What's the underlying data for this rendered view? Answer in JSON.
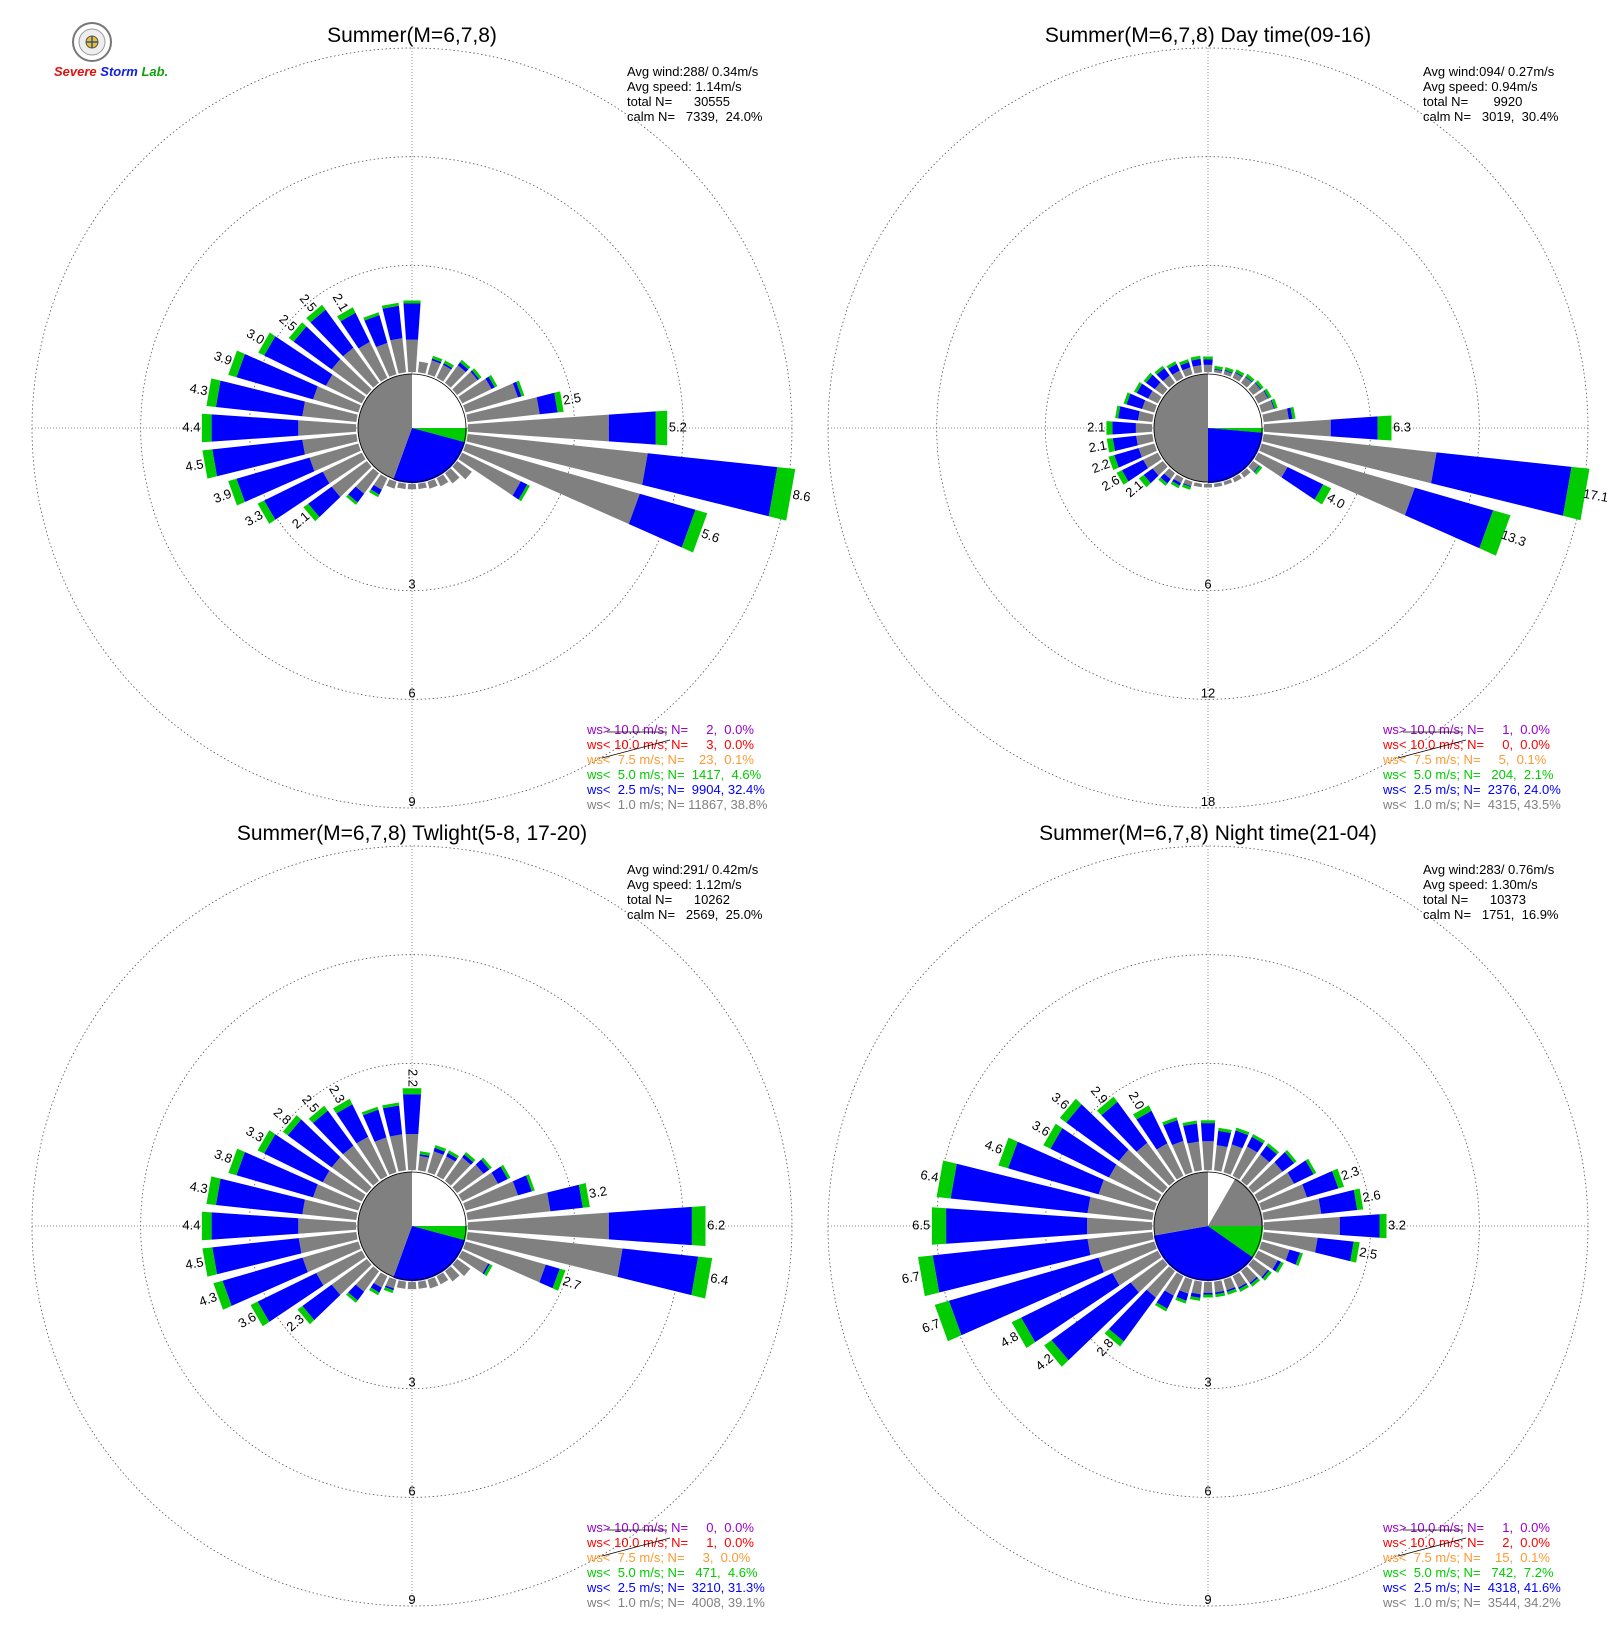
{
  "colors": {
    "band_gt10": "#9900cc",
    "band_lt10": "#ff0000",
    "band_lt7_5": "#ff9933",
    "band_lt5": "#00cc00",
    "band_lt2_5": "#0000ff",
    "band_lt1": "#808080"
  },
  "logo": {
    "icon": "storm-lab-seal-icon",
    "text_s": "Severe",
    "text_t": "Storm",
    "text_l": "Lab."
  },
  "chart_data": [
    {
      "type": "wind-rose",
      "title": "Summer(M=6,7,8)",
      "stats": [
        "Avg wind:288/ 0.34m/s",
        "Avg speed: 1.14m/s",
        "total N=      30555",
        "calm N=   7339,  24.0%"
      ],
      "radial_ticks": [
        "3",
        "6",
        "9"
      ],
      "legend": [
        "ws> 10.0 m/s; N=     2,  0.0%",
        "ws< 10.0 m/s; N=     3,  0.0%",
        "ws<  7.5 m/s; N=    23,  0.1%",
        "ws<  5.0 m/s; N=  1417,  4.6%",
        "ws<  2.5 m/s; N=  9904, 32.4%",
        "ws<  1.0 m/s; N= 11867, 38.8%"
      ],
      "bars": [
        [
          10,
          0.3,
          0.0
        ],
        [
          20,
          0.4,
          0.05
        ],
        [
          30,
          0.4,
          0.05
        ],
        [
          40,
          0.6,
          0.1
        ],
        [
          50,
          0.7,
          0.05
        ],
        [
          60,
          0.9,
          0.1
        ],
        [
          70,
          1.5,
          0.1
        ],
        [
          80,
          2.0,
          0.5,
          "2.5"
        ],
        [
          90,
          3.9,
          1.3,
          "5.2"
        ],
        [
          100,
          5.0,
          3.6,
          "8.6"
        ],
        [
          110,
          5.0,
          1.6,
          "5.6"
        ],
        [
          120,
          1.8,
          0.2
        ],
        [
          130,
          0.5,
          0.0
        ],
        [
          140,
          0.35,
          0.0
        ],
        [
          150,
          0.25,
          0.0
        ],
        [
          160,
          0.2,
          0.0
        ],
        [
          170,
          0.15,
          0.0
        ],
        [
          180,
          0.15,
          0.0
        ],
        [
          190,
          0.15,
          0.0
        ],
        [
          200,
          0.2,
          0.0
        ],
        [
          210,
          0.35,
          0.15
        ],
        [
          220,
          0.7,
          0.3
        ],
        [
          230,
          1.2,
          0.8,
          "2.1"
        ],
        [
          240,
          1.2,
          1.8,
          "3.3"
        ],
        [
          250,
          1.4,
          2.1,
          "3.9"
        ],
        [
          260,
          1.5,
          2.5,
          "4.5"
        ],
        [
          270,
          1.6,
          2.4,
          "4.4"
        ],
        [
          280,
          1.5,
          2.4,
          "4.3"
        ],
        [
          290,
          1.3,
          2.2,
          "3.9"
        ],
        [
          300,
          1.1,
          1.9,
          "3.0"
        ],
        [
          310,
          1.2,
          1.3,
          "2.5"
        ],
        [
          320,
          1.2,
          1.3,
          "2.5"
        ],
        [
          330,
          1.1,
          0.9,
          "2.1"
        ],
        [
          340,
          0.9,
          0.8
        ],
        [
          350,
          0.95,
          0.9
        ],
        [
          360,
          0.9,
          1.0
        ]
      ],
      "sectors": [
        {
          "from": 0,
          "to": 90,
          "ring": 1.02,
          "color": "#ffffff"
        },
        {
          "from": 90,
          "to": 105,
          "ring": 1.02,
          "color": "#00cc00"
        },
        {
          "from": 105,
          "to": 200,
          "ring": 1.02,
          "color": "#0000ff"
        },
        {
          "from": 200,
          "to": 360,
          "ring": 1.0,
          "color": "#808080"
        }
      ]
    },
    {
      "type": "wind-rose",
      "title": "Summer(M=6,7,8) Day time(09-16)",
      "stats": [
        "Avg wind:094/ 0.27m/s",
        "Avg speed: 0.94m/s",
        "total N=       9920",
        "calm N=   3019,  30.4%"
      ],
      "radial_ticks": [
        "6",
        "12",
        "18"
      ],
      "legend": [
        "ws> 10.0 m/s; N=     1,  0.0%",
        "ws< 10.0 m/s; N=     0,  0.0%",
        "ws<  7.5 m/s; N=     5,  0.1%",
        "ws<  5.0 m/s; N=   204,  2.1%",
        "ws<  2.5 m/s; N=  2376, 24.0%",
        "ws<  1.0 m/s; N=  4315, 43.5%"
      ],
      "bars": [
        [
          10,
          0.15,
          0.05
        ],
        [
          20,
          0.2,
          0.05
        ],
        [
          30,
          0.3,
          0.05
        ],
        [
          40,
          0.4,
          0.05
        ],
        [
          50,
          0.5,
          0.05
        ],
        [
          60,
          0.6,
          0.05
        ],
        [
          70,
          0.7,
          0.05
        ],
        [
          80,
          1.4,
          0.2
        ],
        [
          90,
          3.7,
          2.6,
          "6.3"
        ],
        [
          100,
          9.6,
          7.5,
          "17.1"
        ],
        [
          110,
          8.8,
          4.5,
          "13.3"
        ],
        [
          120,
          1.8,
          2.2,
          "4.0"
        ],
        [
          130,
          0.4,
          0.05
        ],
        [
          140,
          0.3,
          0.0
        ],
        [
          150,
          0.25,
          0.0
        ],
        [
          160,
          0.2,
          0.0
        ],
        [
          170,
          0.2,
          0.0
        ],
        [
          180,
          0.2,
          0.0
        ],
        [
          190,
          0.2,
          0.0
        ],
        [
          200,
          0.25,
          0.05
        ],
        [
          210,
          0.3,
          0.15
        ],
        [
          220,
          0.4,
          0.3
        ],
        [
          230,
          0.7,
          0.6,
          "2.1"
        ],
        [
          240,
          0.9,
          1.3,
          "2.6"
        ],
        [
          250,
          0.9,
          1.4,
          "2.2"
        ],
        [
          260,
          0.9,
          1.3,
          "2.1"
        ],
        [
          270,
          0.9,
          1.3,
          "2.1"
        ],
        [
          280,
          0.8,
          1.1
        ],
        [
          290,
          0.7,
          0.9
        ],
        [
          300,
          0.6,
          0.7
        ],
        [
          310,
          0.55,
          0.6
        ],
        [
          320,
          0.5,
          0.5
        ],
        [
          330,
          0.45,
          0.4
        ],
        [
          340,
          0.4,
          0.3
        ],
        [
          350,
          0.4,
          0.35
        ],
        [
          360,
          0.4,
          0.3
        ]
      ],
      "sectors": [
        {
          "from": 0,
          "to": 90,
          "ring": 1.02,
          "color": "#ffffff"
        },
        {
          "from": 90,
          "to": 95,
          "ring": 1.02,
          "color": "#00cc00"
        },
        {
          "from": 95,
          "to": 180,
          "ring": 1.02,
          "color": "#0000ff"
        },
        {
          "from": 180,
          "to": 360,
          "ring": 1.0,
          "color": "#808080"
        }
      ]
    },
    {
      "type": "wind-rose",
      "title": "Summer(M=6,7,8) Twlight(5-8, 17-20)",
      "stats": [
        "Avg wind:291/ 0.42m/s",
        "Avg speed: 1.12m/s",
        "total N=      10262",
        "calm N=   2569,  25.0%"
      ],
      "radial_ticks": [
        "3",
        "6",
        "9"
      ],
      "legend": [
        "ws> 10.0 m/s; N=     0,  0.0%",
        "ws< 10.0 m/s; N=     1,  0.0%",
        "ws<  7.5 m/s; N=     3,  0.0%",
        "ws<  5.0 m/s; N=   471,  4.6%",
        "ws<  2.5 m/s; N=  3210, 31.3%",
        "ws<  1.0 m/s; N=  4008, 39.1%"
      ],
      "bars": [
        [
          10,
          0.4,
          0.05
        ],
        [
          20,
          0.6,
          0.1
        ],
        [
          30,
          0.6,
          0.1
        ],
        [
          40,
          0.8,
          0.1
        ],
        [
          50,
          0.9,
          0.2
        ],
        [
          60,
          1.1,
          0.3
        ],
        [
          70,
          1.5,
          0.4
        ],
        [
          80,
          2.3,
          0.9,
          "3.2"
        ],
        [
          90,
          3.9,
          2.3,
          "6.2"
        ],
        [
          100,
          4.3,
          2.1,
          "6.4"
        ],
        [
          110,
          2.3,
          0.4,
          "2.7"
        ],
        [
          120,
          0.8,
          0.05
        ],
        [
          130,
          0.45,
          0.0
        ],
        [
          140,
          0.35,
          0.0
        ],
        [
          150,
          0.25,
          0.0
        ],
        [
          160,
          0.25,
          0.0
        ],
        [
          170,
          0.2,
          0.0
        ],
        [
          180,
          0.2,
          0.0
        ],
        [
          190,
          0.2,
          0.0
        ],
        [
          200,
          0.25,
          0.05
        ],
        [
          210,
          0.35,
          0.15
        ],
        [
          220,
          0.7,
          0.3
        ],
        [
          230,
          1.2,
          1.0,
          "2.3"
        ],
        [
          240,
          1.4,
          1.8,
          "3.6"
        ],
        [
          250,
          1.6,
          2.3,
          "4.3"
        ],
        [
          260,
          1.6,
          2.4,
          "4.5"
        ],
        [
          270,
          1.6,
          2.4,
          "4.4"
        ],
        [
          280,
          1.5,
          2.4,
          "4.3"
        ],
        [
          290,
          1.3,
          2.2,
          "3.8"
        ],
        [
          300,
          1.2,
          1.8,
          "3.3"
        ],
        [
          310,
          1.2,
          1.5,
          "2.8"
        ],
        [
          320,
          1.2,
          1.2,
          "2.5"
        ],
        [
          330,
          1.2,
          1.0,
          "2.3"
        ],
        [
          340,
          1.0,
          0.8
        ],
        [
          350,
          1.0,
          0.8
        ],
        [
          360,
          1.0,
          1.1,
          "2.2"
        ]
      ],
      "sectors": [
        {
          "from": 0,
          "to": 90,
          "ring": 1.02,
          "color": "#ffffff"
        },
        {
          "from": 90,
          "to": 105,
          "ring": 1.02,
          "color": "#00cc00"
        },
        {
          "from": 105,
          "to": 200,
          "ring": 1.02,
          "color": "#0000ff"
        },
        {
          "from": 200,
          "to": 360,
          "ring": 1.0,
          "color": "#808080"
        }
      ]
    },
    {
      "type": "wind-rose",
      "title": "Summer(M=6,7,8) Night time(21-04)",
      "stats": [
        "Avg wind:283/ 0.76m/s",
        "Avg speed: 1.30m/s",
        "total N=      10373",
        "calm N=   1751,  16.9%"
      ],
      "radial_ticks": [
        "3",
        "6",
        "9"
      ],
      "legend": [
        "ws> 10.0 m/s; N=     1,  0.0%",
        "ws< 10.0 m/s; N=     2,  0.0%",
        "ws<  7.5 m/s; N=    15,  0.1%",
        "ws<  5.0 m/s; N=   742,  7.2%",
        "ws<  2.5 m/s; N=  4318, 41.6%",
        "ws<  1.0 m/s; N=  3544, 34.2%"
      ],
      "bars": [
        [
          10,
          0.7,
          0.4
        ],
        [
          20,
          0.8,
          0.4
        ],
        [
          30,
          0.9,
          0.3
        ],
        [
          40,
          0.9,
          0.3
        ],
        [
          50,
          1.0,
          0.4
        ],
        [
          60,
          1.1,
          0.6
        ],
        [
          70,
          1.3,
          0.9,
          "2.3"
        ],
        [
          80,
          1.6,
          1.0,
          "2.6"
        ],
        [
          90,
          2.1,
          1.1,
          "3.2"
        ],
        [
          100,
          1.5,
          1.0,
          "2.5"
        ],
        [
          110,
          0.8,
          0.3
        ],
        [
          120,
          0.6,
          0.1
        ],
        [
          130,
          0.5,
          0.05
        ],
        [
          140,
          0.4,
          0.05
        ],
        [
          150,
          0.35,
          0.05
        ],
        [
          160,
          0.3,
          0.05
        ],
        [
          170,
          0.3,
          0.05
        ],
        [
          180,
          0.3,
          0.05
        ],
        [
          190,
          0.35,
          0.1
        ],
        [
          200,
          0.4,
          0.2
        ],
        [
          210,
          0.6,
          0.4
        ],
        [
          220,
          0.9,
          1.5,
          "2.8"
        ],
        [
          230,
          1.1,
          2.7,
          "4.2"
        ],
        [
          240,
          1.4,
          2.8,
          "4.8"
        ],
        [
          250,
          1.6,
          4.3,
          "6.7"
        ],
        [
          260,
          1.8,
          4.3,
          "6.7"
        ],
        [
          270,
          1.8,
          3.9,
          "6.5"
        ],
        [
          280,
          1.8,
          3.8,
          "6.4"
        ],
        [
          290,
          1.6,
          2.6,
          "4.6"
        ],
        [
          300,
          1.5,
          1.8,
          "3.6"
        ],
        [
          310,
          1.5,
          1.8,
          "3.6"
        ],
        [
          320,
          1.3,
          1.4,
          "2.9"
        ],
        [
          330,
          1.0,
          1.0,
          "2.0"
        ],
        [
          340,
          0.9,
          0.6
        ],
        [
          350,
          0.8,
          0.5
        ],
        [
          360,
          0.8,
          0.5
        ]
      ],
      "sectors": [
        {
          "from": 0,
          "to": 30,
          "ring": 1.02,
          "color": "#ffffff"
        },
        {
          "from": 30,
          "to": 90,
          "ring": 1.02,
          "color": "#808080"
        },
        {
          "from": 90,
          "to": 125,
          "ring": 1.02,
          "color": "#00cc00"
        },
        {
          "from": 125,
          "to": 260,
          "ring": 1.02,
          "color": "#0000ff"
        },
        {
          "from": 260,
          "to": 360,
          "ring": 1.0,
          "color": "#808080"
        }
      ]
    }
  ]
}
